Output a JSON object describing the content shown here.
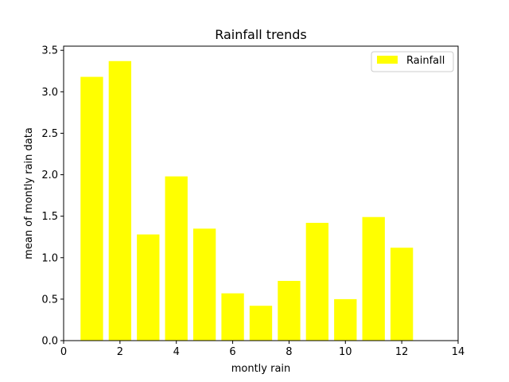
{
  "chart_data": {
    "type": "bar",
    "title": "Rainfall trends",
    "xlabel": "montly rain",
    "ylabel": "mean of montly rain data",
    "x": [
      1,
      2,
      3,
      4,
      5,
      6,
      7,
      8,
      9,
      10,
      11,
      12
    ],
    "series": [
      {
        "name": "Rainfall",
        "color": "#ffff00",
        "values": [
          3.18,
          3.37,
          1.28,
          1.98,
          1.35,
          0.57,
          0.42,
          0.72,
          1.42,
          0.5,
          1.49,
          1.12
        ]
      }
    ],
    "xlim": [
      0,
      14
    ],
    "ylim": [
      0,
      3.55
    ],
    "xticks": [
      0,
      2,
      4,
      6,
      8,
      10,
      12,
      14
    ],
    "yticks": [
      0.0,
      0.5,
      1.0,
      1.5,
      2.0,
      2.5,
      3.0,
      3.5
    ],
    "xtick_labels": [
      "0",
      "2",
      "4",
      "6",
      "8",
      "10",
      "12",
      "14"
    ],
    "ytick_labels": [
      "0.0",
      "0.5",
      "1.0",
      "1.5",
      "2.0",
      "2.5",
      "3.0",
      "3.5"
    ],
    "grid": false,
    "legend": "top-right"
  }
}
